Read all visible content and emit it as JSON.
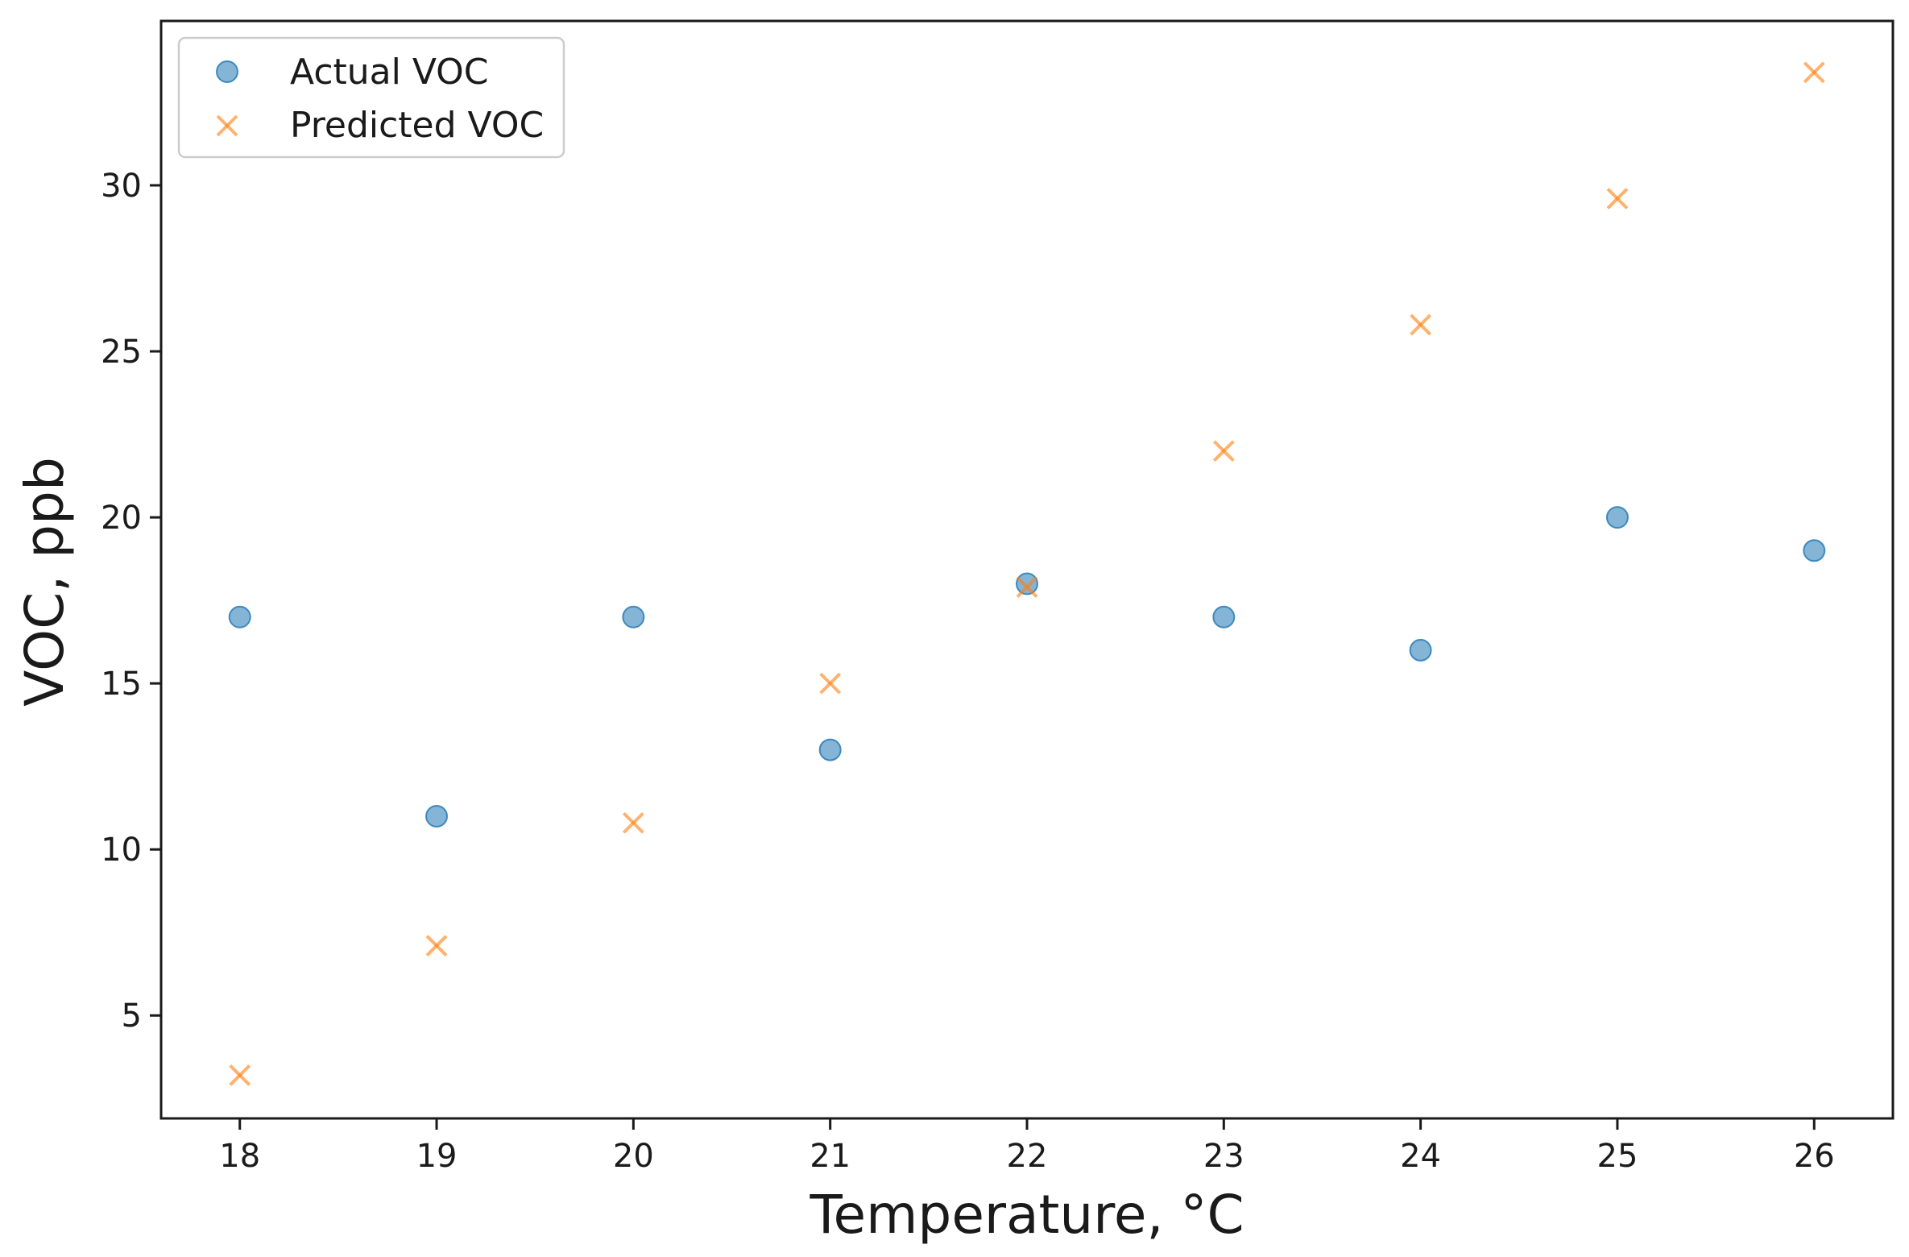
{
  "chart_data": {
    "type": "scatter",
    "title": "",
    "xlabel": "Temperature, °C",
    "ylabel": "VOC, ppb",
    "xlim": [
      17.6,
      26.4
    ],
    "ylim": [
      1.9,
      34.95
    ],
    "xticks": [
      18,
      19,
      20,
      21,
      22,
      23,
      24,
      25,
      26
    ],
    "yticks": [
      5,
      10,
      15,
      20,
      25,
      30
    ],
    "grid": false,
    "legend_position": "top-left",
    "series": [
      {
        "name": "Actual VOC",
        "marker": "circle",
        "color": "#1f77b4",
        "x": [
          18,
          19,
          20,
          21,
          22,
          23,
          24,
          25,
          26
        ],
        "y": [
          17,
          11,
          17,
          13,
          18,
          17,
          16,
          20,
          19
        ]
      },
      {
        "name": "Predicted VOC",
        "marker": "x",
        "color": "#ff7f0e",
        "x": [
          18,
          19,
          20,
          21,
          22,
          23,
          24,
          25,
          26
        ],
        "y": [
          3.2,
          7.1,
          10.8,
          15.0,
          17.9,
          22.0,
          25.8,
          29.6,
          33.4
        ]
      }
    ]
  }
}
